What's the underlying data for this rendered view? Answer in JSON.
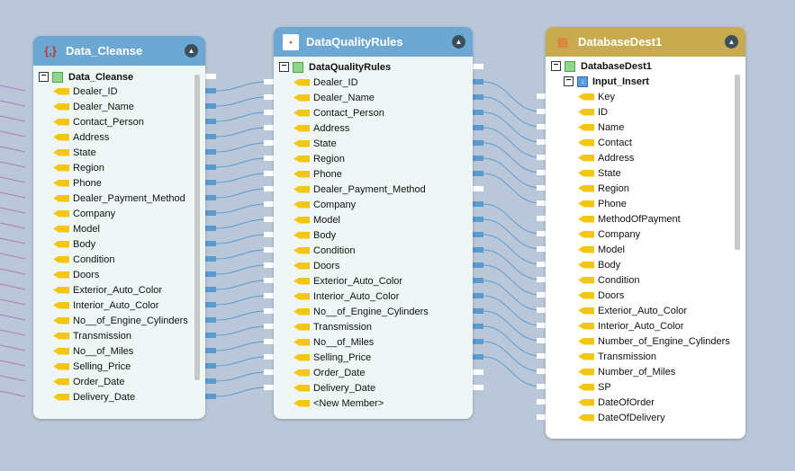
{
  "colors": {
    "background": "#b9c7d9",
    "source_header": "#6da7d3",
    "rules_header": "#6da7d3",
    "dest_header": "#c9ab4f",
    "wire": "#5b9bd0",
    "input_wire": "#b07bb8"
  },
  "data_cleanse": {
    "title": "Data_Cleanse",
    "icon": "braces-icon",
    "root": "Data_Cleanse",
    "fields": [
      "Dealer_ID",
      "Dealer_Name",
      "Contact_Person",
      "Address",
      "State",
      "Region",
      "Phone",
      "Dealer_Payment_Method",
      "Company",
      "Model",
      "Body",
      "Condition",
      "Doors",
      "Exterior_Auto_Color",
      "Interior_Auto_Color",
      "No__of_Engine_Cylinders",
      "Transmission",
      "No__of_Miles",
      "Selling_Price",
      "Order_Date",
      "Delivery_Date"
    ]
  },
  "data_quality_rules": {
    "title": "DataQualityRules",
    "icon": "rules-icon",
    "root": "DataQualityRules",
    "fields": [
      "Dealer_ID",
      "Dealer_Name",
      "Contact_Person",
      "Address",
      "State",
      "Region",
      "Phone",
      "Dealer_Payment_Method",
      "Company",
      "Model",
      "Body",
      "Condition",
      "Doors",
      "Exterior_Auto_Color",
      "Interior_Auto_Color",
      "No__of_Engine_Cylinders",
      "Transmission",
      "No__of_Miles",
      "Selling_Price",
      "Order_Date",
      "Delivery_Date"
    ],
    "new_member": "<New Member>"
  },
  "database_dest": {
    "title": "DatabaseDest1",
    "icon": "database-icon",
    "root": "DatabaseDest1",
    "group": "Input_Insert",
    "fields": [
      "Key",
      "ID",
      "Name",
      "Contact",
      "Address",
      "State",
      "Region",
      "Phone",
      "MethodOfPayment",
      "Company",
      "Model",
      "Body",
      "Condition",
      "Doors",
      "Exterior_Auto_Color",
      "Interior_Auto_Color",
      "Number_of_Engine_Cylinders",
      "Transmission",
      "Number_of_Miles",
      "SP",
      "DateOfOrder",
      "DateOfDelivery"
    ]
  },
  "mappings_rules_to_dest": [
    [
      0,
      1
    ],
    [
      1,
      2
    ],
    [
      2,
      3
    ],
    [
      3,
      4
    ],
    [
      4,
      5
    ],
    [
      5,
      6
    ],
    [
      6,
      7
    ],
    [
      8,
      9
    ],
    [
      9,
      10
    ],
    [
      10,
      11
    ],
    [
      11,
      12
    ],
    [
      12,
      13
    ],
    [
      13,
      14
    ],
    [
      14,
      15
    ],
    [
      15,
      16
    ],
    [
      16,
      17
    ],
    [
      17,
      18
    ],
    [
      18,
      19
    ]
  ]
}
